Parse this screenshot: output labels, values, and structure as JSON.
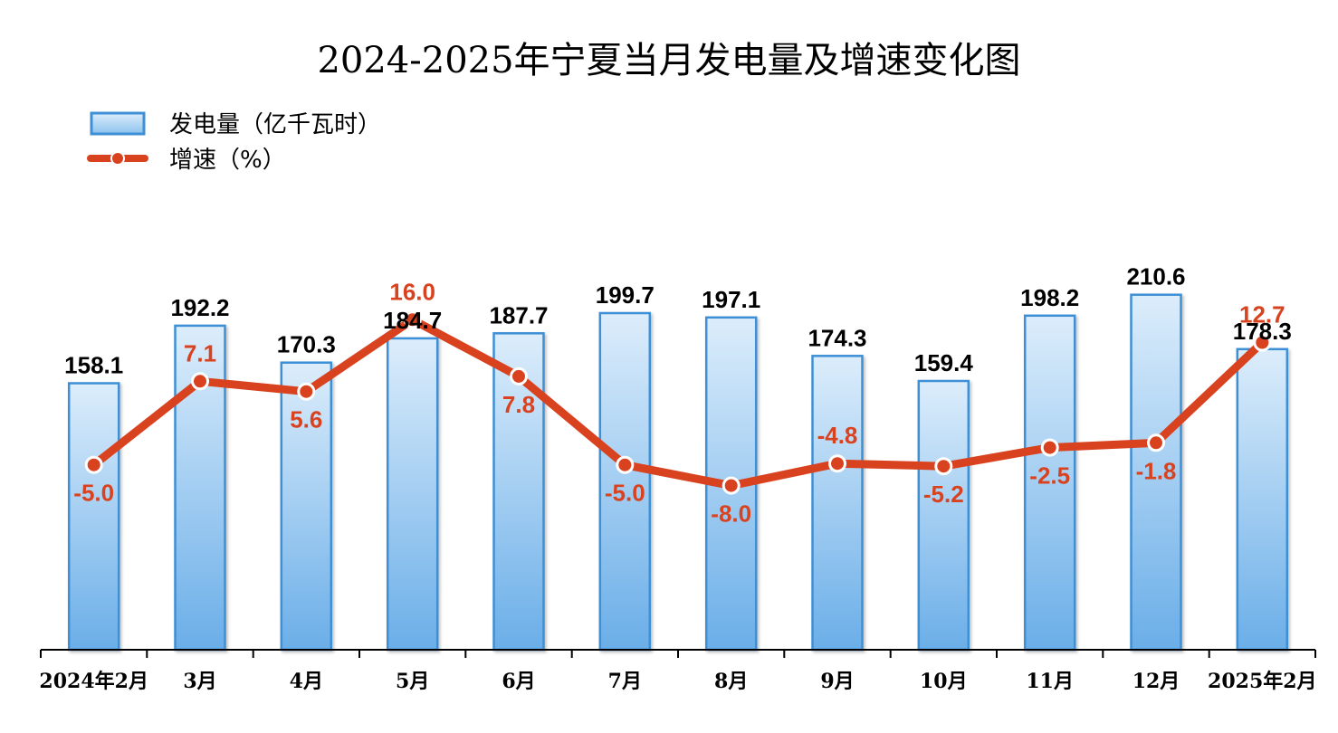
{
  "chart_data": {
    "type": "bar",
    "title": "2024-2025年宁夏当月发电量及增速变化图",
    "categories": [
      "2024年2月",
      "3月",
      "4月",
      "5月",
      "6月",
      "7月",
      "8月",
      "9月",
      "10月",
      "11月",
      "12月",
      "2025年2月"
    ],
    "series": [
      {
        "name": "发电量（亿千瓦时）",
        "type": "bar",
        "values": [
          158.1,
          192.2,
          170.3,
          184.7,
          187.7,
          199.7,
          197.1,
          174.3,
          159.4,
          198.2,
          210.6,
          178.3
        ]
      },
      {
        "name": "增速（%）",
        "type": "line",
        "values": [
          -5.0,
          7.1,
          5.6,
          16.0,
          7.8,
          -5.0,
          -8.0,
          -4.8,
          -5.2,
          -2.5,
          -1.8,
          12.7
        ]
      }
    ],
    "xlabel": "",
    "ylabel": "",
    "bar_ylim": [
      0,
      235
    ],
    "line_ylim": [
      -53,
      45
    ],
    "grid": false,
    "legend_position": "top-left",
    "colors": {
      "bar_top": "#d9edfb",
      "bar_bottom": "#6aaee8",
      "bar_border": "#3e8fd6",
      "line": "#d9421f",
      "marker_fill": "#d9421f",
      "marker_stroke": "#ffffff"
    }
  }
}
